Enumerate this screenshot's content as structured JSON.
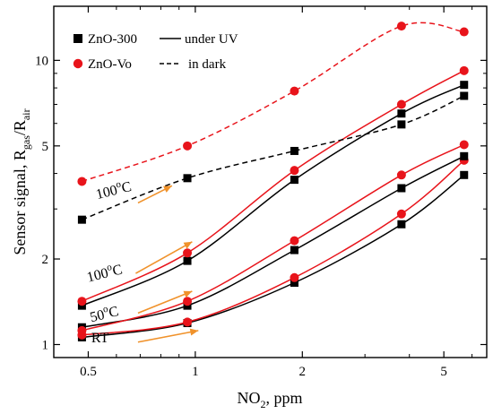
{
  "chart_data": {
    "type": "scatter",
    "xlabel": "NO",
    "xlabel_sub": "2",
    "xlabel_suffix": ", ppm",
    "ylabel": "Sensor signal, R",
    "ylabel_sub1": "gas",
    "ylabel_mid": "/R",
    "ylabel_sub2": "air",
    "x_scale": "log",
    "y_scale": "log",
    "xlim": [
      0.4,
      6.6
    ],
    "ylim": [
      0.9,
      15.5
    ],
    "x_ticks": [
      0.5,
      1,
      2,
      5
    ],
    "x_tick_labels": [
      "0.5",
      "1",
      "2",
      "5"
    ],
    "y_ticks": [
      1,
      2,
      5,
      10
    ],
    "y_tick_labels": [
      "1",
      "2",
      "5",
      "10"
    ],
    "grid": false,
    "legend_position": "top-left",
    "legend": {
      "markers": [
        {
          "label": "ZnO-300",
          "marker": "square",
          "color": "#000000"
        },
        {
          "label": "ZnO-Vo",
          "marker": "circle",
          "color": "#e8141b"
        }
      ],
      "lines": [
        {
          "label": "under UV",
          "style": "solid"
        },
        {
          "label": "in dark",
          "style": "dashed"
        }
      ]
    },
    "colors": {
      "zno300": "#000000",
      "znovo": "#e8141b",
      "arrow": "#f0922b"
    },
    "x": [
      0.48,
      0.95,
      1.9,
      3.8,
      5.7
    ],
    "series": [
      {
        "name": "ZnO-300",
        "condition": "RT",
        "mode": "UV",
        "color": "#000000",
        "marker": "square",
        "line": "solid",
        "values": [
          1.06,
          1.19,
          1.65,
          2.65,
          3.95
        ]
      },
      {
        "name": "ZnO-Vo",
        "condition": "RT",
        "mode": "UV",
        "color": "#e8141b",
        "marker": "circle",
        "line": "solid",
        "values": [
          1.08,
          1.2,
          1.72,
          2.88,
          4.45
        ]
      },
      {
        "name": "ZnO-300",
        "condition": "50°C",
        "mode": "UV",
        "color": "#000000",
        "marker": "square",
        "line": "solid",
        "values": [
          1.15,
          1.37,
          2.15,
          3.55,
          4.6
        ]
      },
      {
        "name": "ZnO-Vo",
        "condition": "50°C",
        "mode": "UV",
        "color": "#e8141b",
        "marker": "circle",
        "line": "solid",
        "values": [
          1.12,
          1.42,
          2.32,
          3.95,
          5.05
        ]
      },
      {
        "name": "ZnO-300",
        "condition": "100°C",
        "mode": "UV",
        "color": "#000000",
        "marker": "square",
        "line": "solid",
        "values": [
          1.37,
          1.97,
          3.8,
          6.5,
          8.2
        ]
      },
      {
        "name": "ZnO-Vo",
        "condition": "100°C",
        "mode": "UV",
        "color": "#e8141b",
        "marker": "circle",
        "line": "solid",
        "values": [
          1.42,
          2.1,
          4.1,
          7.0,
          9.2
        ]
      },
      {
        "name": "ZnO-300",
        "condition": "100°C",
        "mode": "dark",
        "color": "#000000",
        "marker": "square",
        "line": "dashed",
        "values": [
          2.75,
          3.85,
          4.8,
          5.95,
          7.5
        ]
      },
      {
        "name": "ZnO-Vo",
        "condition": "100°C",
        "mode": "dark",
        "color": "#e8141b",
        "marker": "circle",
        "line": "dashed",
        "values": [
          3.75,
          5.0,
          7.8,
          13.2,
          12.6
        ]
      }
    ],
    "annotations": [
      {
        "text": "100",
        "sup": "o",
        "suffix": "C",
        "x": 0.53,
        "y": 3.25,
        "rotate": -14
      },
      {
        "text": "100",
        "sup": "o",
        "suffix": "C",
        "x": 0.5,
        "y": 1.66,
        "rotate": -14
      },
      {
        "text": "50",
        "sup": "o",
        "suffix": "C",
        "x": 0.51,
        "y": 1.2,
        "rotate": -14
      },
      {
        "text": "RT",
        "sup": "",
        "suffix": "",
        "x": 0.51,
        "y": 1.02,
        "rotate": 0
      }
    ],
    "arrows": [
      {
        "from": [
          0.69,
          3.15
        ],
        "to": [
          0.86,
          3.62
        ]
      },
      {
        "from": [
          0.68,
          1.78
        ],
        "to": [
          0.98,
          2.3
        ]
      },
      {
        "from": [
          0.69,
          1.29
        ],
        "to": [
          0.98,
          1.54
        ]
      },
      {
        "from": [
          0.69,
          1.02
        ],
        "to": [
          1.02,
          1.12
        ]
      }
    ]
  }
}
